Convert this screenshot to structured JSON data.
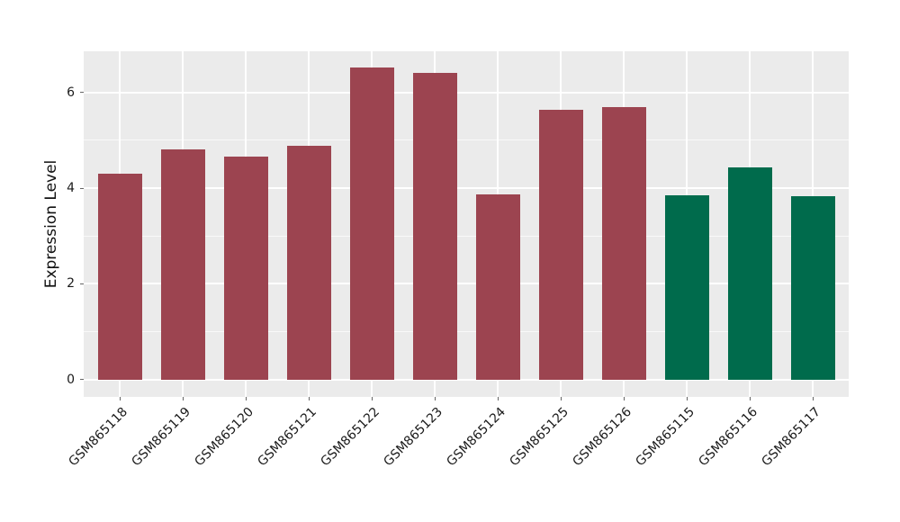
{
  "chart_data": {
    "type": "bar",
    "title": "",
    "xlabel": "",
    "ylabel": "Expression Level",
    "categories": [
      "GSM865118",
      "GSM865119",
      "GSM865120",
      "GSM865121",
      "GSM865122",
      "GSM865123",
      "GSM865124",
      "GSM865125",
      "GSM865126",
      "GSM865115",
      "GSM865116",
      "GSM865117"
    ],
    "values": [
      4.3,
      4.81,
      4.66,
      4.89,
      6.53,
      6.4,
      3.87,
      5.64,
      5.7,
      3.86,
      4.44,
      3.83
    ],
    "bar_colors": [
      "#9C4450",
      "#9C4450",
      "#9C4450",
      "#9C4450",
      "#9C4450",
      "#9C4450",
      "#9C4450",
      "#9C4450",
      "#9C4450",
      "#006B4C",
      "#006B4C",
      "#006B4C"
    ],
    "color_groups": [
      {
        "color": "#9C4450",
        "categories": [
          "GSM865118",
          "GSM865119",
          "GSM865120",
          "GSM865121",
          "GSM865122",
          "GSM865123",
          "GSM865124",
          "GSM865125",
          "GSM865126"
        ]
      },
      {
        "color": "#006B4C",
        "categories": [
          "GSM865115",
          "GSM865116",
          "GSM865117"
        ]
      }
    ],
    "ylim": [
      -0.36,
      6.86
    ],
    "yticks": [
      0,
      2,
      4,
      6
    ],
    "yticks_minor": [
      1,
      3,
      5
    ],
    "grid": "on",
    "legend": "none",
    "panel_background": "#EBEBEB",
    "grid_color": "#FFFFFF",
    "tick_label_color": "#1A1A1A",
    "tick_mark_color": "#666666"
  }
}
